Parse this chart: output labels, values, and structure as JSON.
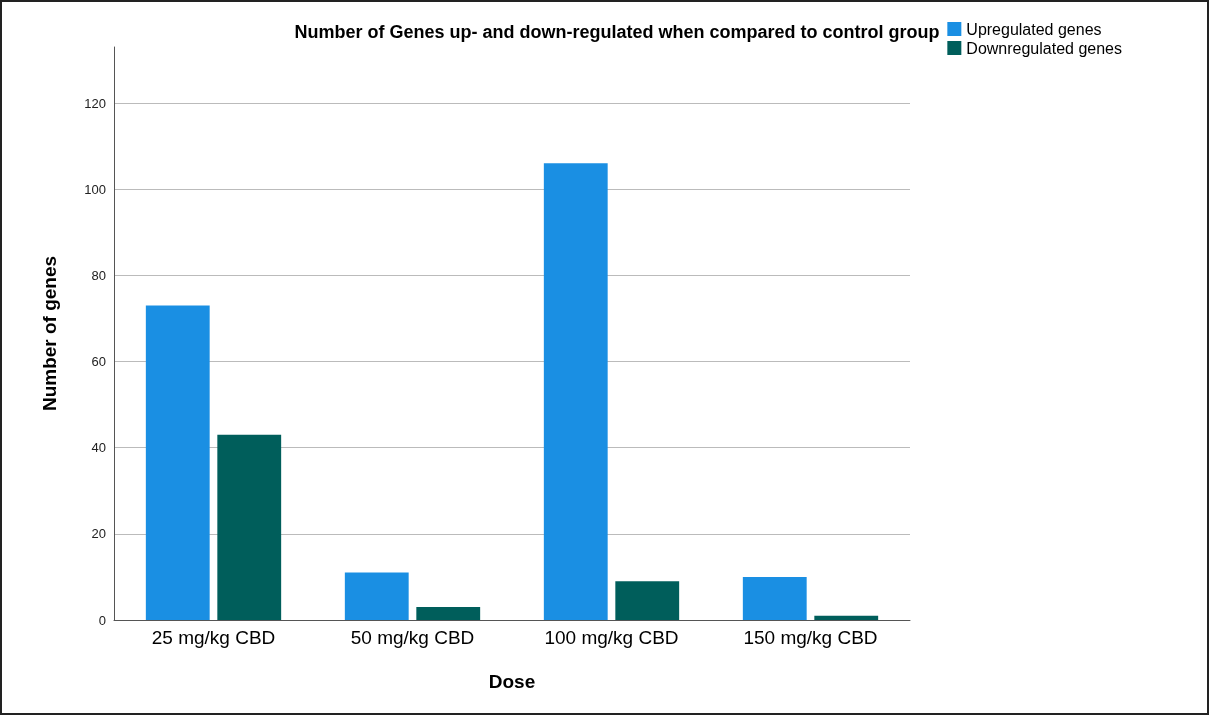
{
  "chart_data": {
    "type": "bar",
    "title": "Number of Genes up- and down-regulated when compared to control group",
    "xlabel": "Dose",
    "ylabel": "Number of genes",
    "categories": [
      "25 mg/kg CBD",
      "50 mg/kg CBD",
      "100 mg/kg CBD",
      "150 mg/kg CBD"
    ],
    "series": [
      {
        "name": "Upregulated genes",
        "color": "#1a8fe3",
        "values": [
          73,
          11,
          106,
          10
        ]
      },
      {
        "name": "Downregulated genes",
        "color": "#005e5b",
        "values": [
          43,
          3,
          9,
          1
        ]
      }
    ],
    "ylim": [
      0,
      133
    ],
    "yticks": [
      0,
      20,
      40,
      60,
      80,
      100,
      120
    ],
    "grid": "y",
    "legend": "top right"
  }
}
